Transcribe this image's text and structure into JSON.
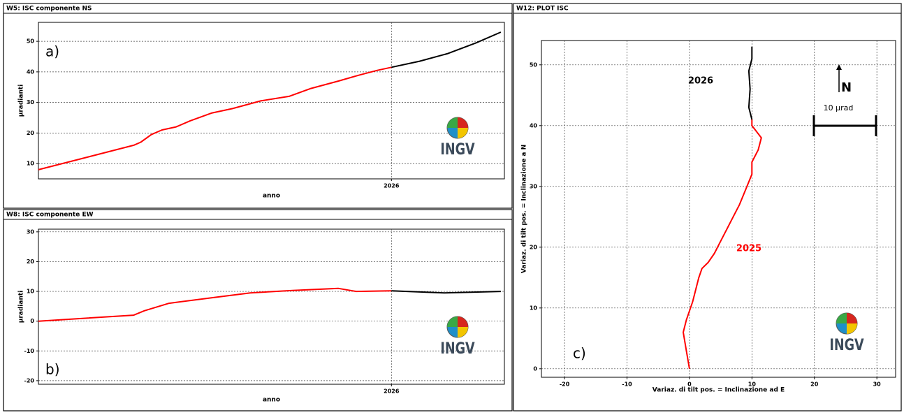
{
  "chart_data": [
    {
      "type": "line",
      "title": "W5: ISC componente NS",
      "panel_label": "a)",
      "xlabel": "anno",
      "ylabel": "µradianti",
      "logo": "INGV",
      "xlim": [
        2025,
        2026.32
      ],
      "xticks": [
        2026
      ],
      "ylim": [
        5,
        56.2
      ],
      "yticks": [
        10,
        20,
        30,
        40,
        50
      ],
      "grid": true,
      "series": [
        {
          "color": "#ff0000",
          "x": [
            2025.0,
            2025.27,
            2025.29,
            2025.32,
            2025.35,
            2025.39,
            2025.43,
            2025.49,
            2025.55,
            2025.63,
            2025.71,
            2025.77,
            2025.85,
            2025.91,
            2025.96,
            2026.0
          ],
          "values": [
            8,
            16,
            17,
            19.5,
            21,
            22,
            24,
            26.5,
            28,
            30.5,
            32,
            34.5,
            37,
            39,
            40.5,
            41.5
          ]
        },
        {
          "color": "#000000",
          "x": [
            2026.0,
            2026.08,
            2026.16,
            2026.24,
            2026.31
          ],
          "values": [
            41.5,
            43.5,
            46,
            49.5,
            53
          ]
        }
      ]
    },
    {
      "type": "line",
      "title": "W8: ISC componente EW",
      "panel_label": "b)",
      "xlabel": "anno",
      "ylabel": "µradianti",
      "logo": "INGV",
      "xlim": [
        2025,
        2026.32
      ],
      "xticks": [
        2026
      ],
      "ylim": [
        -21.2,
        30.9
      ],
      "yticks": [
        -20,
        -10,
        0,
        10,
        20,
        30
      ],
      "grid": true,
      "series": [
        {
          "color": "#ff0000",
          "x": [
            2025.0,
            2025.27,
            2025.3,
            2025.37,
            2025.5,
            2025.6,
            2025.72,
            2025.85,
            2025.9,
            2026.0
          ],
          "values": [
            0,
            2,
            3.5,
            6,
            8,
            9.5,
            10.3,
            11,
            10,
            10.2
          ]
        },
        {
          "color": "#000000",
          "x": [
            2026.0,
            2026.15,
            2026.31
          ],
          "values": [
            10.2,
            9.5,
            10
          ]
        }
      ]
    },
    {
      "type": "line",
      "title": "W12: PLOT ISC",
      "panel_label": "c)",
      "xlabel": "Variaz. di tilt pos. = Inclinazione ad E",
      "ylabel": "Variaz. di tilt pos. = Inclinazione a N",
      "logo": "INGV",
      "north_label": "N",
      "scale_label": "10 µrad",
      "xlim": [
        -23.7,
        33
      ],
      "xticks": [
        -20,
        -10,
        0,
        10,
        20,
        30
      ],
      "ylim": [
        -1.4,
        54
      ],
      "yticks": [
        0,
        10,
        20,
        30,
        40,
        50
      ],
      "grid": true,
      "series": [
        {
          "name": "2025",
          "color": "#ff0000",
          "x": [
            0,
            -0.5,
            -1,
            -0.5,
            0.5,
            1.5,
            2,
            3,
            4,
            5,
            6,
            7,
            8,
            9,
            10,
            10,
            11,
            11.5,
            10,
            10
          ],
          "values": [
            0,
            3,
            6,
            8,
            11,
            15,
            16.5,
            17.5,
            19,
            21,
            23,
            25,
            27,
            29.5,
            32,
            34,
            36,
            38,
            40,
            41
          ]
        },
        {
          "name": "2026",
          "color": "#000000",
          "x": [
            10,
            9.5,
            9.7,
            9.5,
            10,
            10
          ],
          "values": [
            41,
            43,
            46,
            49,
            51,
            53
          ]
        }
      ]
    }
  ]
}
